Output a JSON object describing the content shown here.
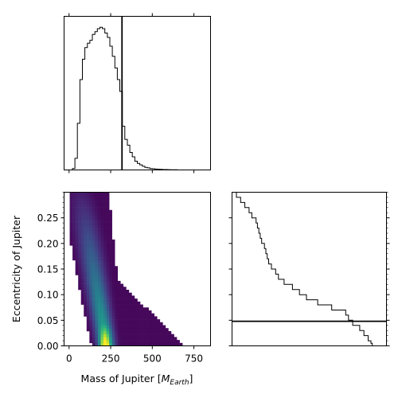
{
  "chart_data": [
    {
      "panel": "mass-histogram",
      "type": "histogram",
      "xlim": [
        -30,
        850
      ],
      "marker_line_x": 318,
      "bins": {
        "start": -10,
        "width": 15
      },
      "counts": [
        0,
        0,
        0.01,
        0.08,
        0.32,
        0.62,
        0.76,
        0.84,
        0.87,
        0.89,
        0.93,
        0.95,
        0.97,
        0.98,
        0.97,
        0.94,
        0.91,
        0.85,
        0.78,
        0.7,
        0.62,
        0.54,
        0.3,
        0.21,
        0.17,
        0.12,
        0.09,
        0.06,
        0.045,
        0.035,
        0.025,
        0.018,
        0.014,
        0.01,
        0.008,
        0.006,
        0.005,
        0.004,
        0.003,
        0.0025,
        0.002,
        0.0015,
        0.001,
        0.001,
        0,
        0,
        0,
        0,
        0,
        0,
        0,
        0,
        0,
        0,
        0,
        0,
        0,
        0
      ],
      "ylim": [
        0,
        1
      ]
    },
    {
      "panel": "joint-density",
      "type": "heatmap",
      "xlabel": "Mass of Jupiter [$M_{Earth}$]",
      "xlabel_main": "Mass of Jupiter [",
      "xlabel_M": "M",
      "xlabel_sub": "Earth",
      "xlabel_close": "]",
      "ylabel": "Eccentricity of Jupiter",
      "xlim": [
        -30,
        850
      ],
      "ylim": [
        0,
        0.3
      ],
      "x_ticks": [
        0,
        250,
        500,
        750
      ],
      "x_tick_labels": [
        "0",
        "250",
        "500",
        "750"
      ],
      "y_ticks": [
        0,
        0.05,
        0.1,
        0.15,
        0.2,
        0.25
      ],
      "y_tick_labels": [
        "0.00",
        "0.05",
        "0.10",
        "0.15",
        "0.20",
        "0.25"
      ],
      "colormap": "viridis"
    },
    {
      "panel": "eccentricity-histogram",
      "type": "step",
      "ylim": [
        0,
        0.3
      ],
      "marker_line_y": 0.048,
      "profile_y": [
        0.3,
        0.29,
        0.28,
        0.27,
        0.26,
        0.25,
        0.24,
        0.23,
        0.22,
        0.21,
        0.2,
        0.19,
        0.18,
        0.17,
        0.16,
        0.15,
        0.14,
        0.13,
        0.12,
        0.11,
        0.1,
        0.09,
        0.08,
        0.07,
        0.06,
        0.05,
        0.04,
        0.03,
        0.02,
        0.01,
        0.005,
        0
      ],
      "profile_x": [
        0.0,
        0.02,
        0.05,
        0.08,
        0.11,
        0.13,
        0.16,
        0.17,
        0.18,
        0.19,
        0.2,
        0.22,
        0.23,
        0.24,
        0.25,
        0.27,
        0.3,
        0.32,
        0.36,
        0.42,
        0.47,
        0.52,
        0.6,
        0.7,
        0.8,
        0.82,
        0.85,
        0.9,
        0.93,
        0.96,
        0.98,
        0.99
      ]
    }
  ]
}
